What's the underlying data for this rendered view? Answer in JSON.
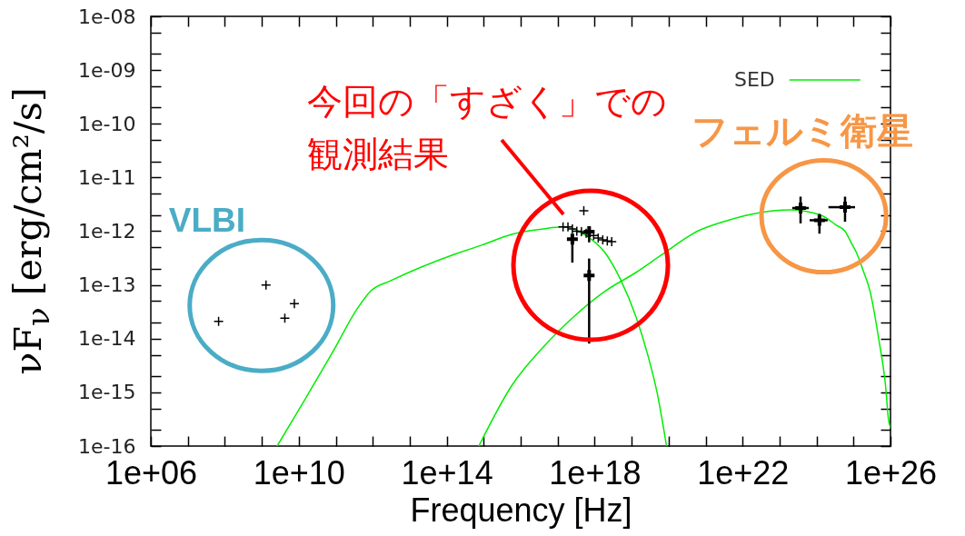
{
  "chart_data": {
    "type": "scatter",
    "xlabel": "Frequency [Hz]",
    "ylabel": "νF$_{ν}$ [erg/cm²/s]",
    "log": "xy",
    "xlim": [
      1000000.0,
      1e+26
    ],
    "ylim": [
      1e-16,
      1e-08
    ],
    "xticks": [
      {
        "value": 1000000.0,
        "label": "1e+06"
      },
      {
        "value": 10000000.0,
        "label": null
      },
      {
        "value": 100000000.0,
        "label": null
      },
      {
        "value": 1000000000.0,
        "label": null
      },
      {
        "value": 10000000000.0,
        "label": "1e+10"
      },
      {
        "value": 100000000000.0,
        "label": null
      },
      {
        "value": 1000000000000.0,
        "label": null
      },
      {
        "value": 10000000000000.0,
        "label": null
      },
      {
        "value": 100000000000000.0,
        "label": "1e+14"
      },
      {
        "value": 1000000000000000.0,
        "label": null
      },
      {
        "value": 1e+16,
        "label": null
      },
      {
        "value": 1e+17,
        "label": null
      },
      {
        "value": 1e+18,
        "label": "1e+18"
      },
      {
        "value": 1e+19,
        "label": null
      },
      {
        "value": 1e+20,
        "label": null
      },
      {
        "value": 1e+21,
        "label": null
      },
      {
        "value": 1e+22,
        "label": "1e+22"
      },
      {
        "value": 1e+23,
        "label": null
      },
      {
        "value": 1e+24,
        "label": null
      },
      {
        "value": 1e+25,
        "label": null
      },
      {
        "value": 1e+26,
        "label": "1e+26"
      }
    ],
    "yticks": [
      {
        "value": 1e-16,
        "label": "1e-16"
      },
      {
        "value": 2e-16,
        "label": null
      },
      {
        "value": 5e-16,
        "label": null
      },
      {
        "value": 1e-15,
        "label": "1e-15"
      },
      {
        "value": 2e-15,
        "label": null
      },
      {
        "value": 5e-15,
        "label": null
      },
      {
        "value": 1e-14,
        "label": "1e-14"
      },
      {
        "value": 2e-14,
        "label": null
      },
      {
        "value": 5e-14,
        "label": null
      },
      {
        "value": 1e-13,
        "label": "1e-13"
      },
      {
        "value": 2e-13,
        "label": null
      },
      {
        "value": 5e-13,
        "label": null
      },
      {
        "value": 1e-12,
        "label": "1e-12"
      },
      {
        "value": 2e-12,
        "label": null
      },
      {
        "value": 5e-12,
        "label": null
      },
      {
        "value": 1e-11,
        "label": "1e-11"
      },
      {
        "value": 2e-11,
        "label": null
      },
      {
        "value": 5e-11,
        "label": null
      },
      {
        "value": 1e-10,
        "label": "1e-10"
      },
      {
        "value": 2e-10,
        "label": null
      },
      {
        "value": 5e-10,
        "label": null
      },
      {
        "value": 1e-09,
        "label": "1e-09"
      },
      {
        "value": 2e-09,
        "label": null
      },
      {
        "value": 5e-09,
        "label": null
      },
      {
        "value": 1e-08,
        "label": "1e-08"
      }
    ],
    "legend": "top right",
    "annotations": [
      {
        "text": "VLBI",
        "x": 1300000000.0,
        "y": 1e-13
      },
      {
        "text": "今回の「すざく」での観測結果",
        "x": 1.4e+17,
        "y": 1.2e-12
      },
      {
        "text": "フェルミ衛星",
        "x": 3.7e+23,
        "y": 2.7e-12
      }
    ],
    "series": [
      {
        "color": "#000000",
        "marker": "cross",
        "x": [
          68000000.0,
          1300000000.0,
          4200000000.0,
          7600000000.0,
          5.1e+17,
          1.4e+17,
          1.9e+17,
          2.5e+17,
          3.3e+17,
          4.4e+17,
          5.9e+17,
          7.1e+17,
          9.4e+17,
          1.25e+18,
          1.66e+18,
          2.2e+18,
          2.9e+18,
          2.5e+17,
          7.1e+17,
          3.7e+23,
          1.2e+24,
          5.9e+24
        ],
        "values": [
          2.1e-14,
          1e-13,
          2.4e-14,
          4.5e-14,
          2.4e-12,
          1.2e-12,
          1.2e-12,
          1.1e-12,
          1e-12,
          9.8e-13,
          9.2e-13,
          9.8e-13,
          8.3e-13,
          7.5e-13,
          6.9e-13,
          6.6e-13,
          6.4e-13,
          7.1e-13,
          1.5e-13,
          2.7e-12,
          1.6e-12,
          2.8e-12
        ],
        "errors": [
          null,
          null,
          null,
          null,
          null,
          null,
          null,
          null,
          null,
          null,
          null,
          [
            6.2e-13,
            1.2e-12
          ],
          null,
          null,
          null,
          null,
          null,
          [
            2.6e-13,
            7.6e-13
          ],
          [
            8.1e-15,
            3.1e-13
          ],
          [
            1.4e-12,
            4.4e-12
          ],
          [
            9e-13,
            2.1e-12
          ],
          [
            1.5e-12,
            4.4e-12
          ]
        ],
        "xerrors": [
          null,
          null,
          null,
          null,
          null,
          null,
          null,
          null,
          null,
          null,
          null,
          null,
          null,
          null,
          null,
          null,
          null,
          null,
          null,
          [
            2.2e+23,
            6.2e+23
          ],
          [
            6.5e+23,
            2e+24
          ],
          [
            2.1e+24,
            1.1e+25
          ]
        ]
      },
      {
        "type": "line",
        "name": "SED",
        "color": "#00ee00",
        "x": [
          2600000000.0,
          13000000000.0,
          85000000000.0,
          380000000000.0,
          900000000000.0,
          3100000000000.0,
          160000000000000.0,
          880000000000000.0,
          6000000000000000.0,
          4.1e+16,
          1.3e+17,
          6e+17,
          1.9e+18,
          4.9e+18,
          1.3e+19,
          2.8e+19,
          4.9e+19,
          8.8e+19
        ],
        "values": [
          1e-16,
          6.4e-16,
          5.8e-15,
          3.6e-14,
          7.8e-14,
          1.2e-13,
          3.7e-13,
          5.5e-13,
          8.8e-13,
          1.1e-12,
          1.2e-12,
          8.2e-13,
          4e-13,
          1.3e-13,
          2.6e-14,
          4.7e-15,
          9.8e-16,
          1e-16
        ]
      },
      {
        "type": "line",
        "color": "#00ee00",
        "x": [
          740000000000000.0,
          6000000000000000.0,
          4.1e+16,
          2.8e+17,
          1.9e+18,
          1.3e+19,
          6e+19,
          6e+20,
          4.1e+21,
          2.8e+22,
          1.9e+23,
          1.3e+24,
          3.4e+24,
          5.9e+24,
          8.9e+24,
          1.2e+25,
          1.8e+25,
          2.8e+25,
          4.9e+25,
          7.3e+25,
          8.9e+25,
          1e+26
        ],
        "values": [
          1e-16,
          1.4e-15,
          7e-15,
          2.6e-14,
          7.6e-14,
          1.7e-13,
          3.5e-13,
          1e-12,
          1.6e-12,
          2.2e-12,
          2.5e-12,
          2e-12,
          1.3e-12,
          1e-12,
          5.9e-13,
          4e-13,
          1.9e-13,
          7.6e-14,
          9.1e-15,
          1.4e-15,
          3e-16,
          2.2e-16
        ]
      }
    ]
  }
}
